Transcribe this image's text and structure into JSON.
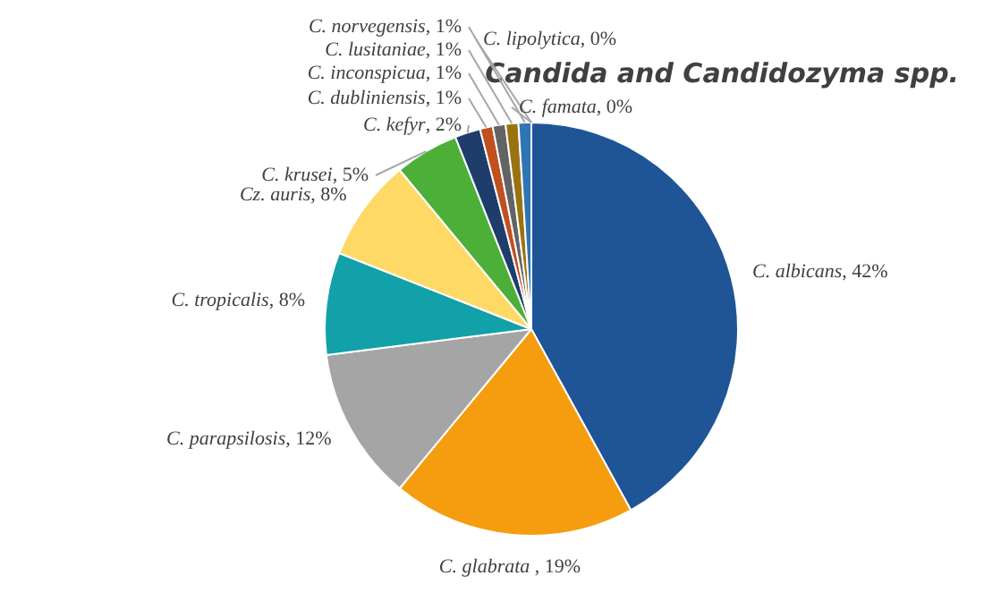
{
  "chart_data": {
    "type": "pie",
    "title": "Candida and Candidozyma spp.",
    "categories": [
      "C. albicans",
      "C. glabrata",
      "C. parapsilosis",
      "C. tropicalis",
      "Cz. auris",
      "C. krusei",
      "C. kefyr",
      "C. dubliniensis",
      "C. inconspicua",
      "C. lusitaniae",
      "C. norvegensis",
      "C. lipolytica",
      "C. famata"
    ],
    "values": [
      42,
      19,
      12,
      8,
      8,
      5,
      2,
      1,
      1,
      1,
      1,
      0,
      0
    ],
    "value_labels": [
      ", 42%",
      " , 19%",
      ", 12%",
      ", 8%",
      ", 8%",
      ", 5%",
      ", 2%",
      ", 1%",
      ", 1%",
      ", 1%",
      ", 1%",
      ", 0%",
      ", 0%"
    ],
    "colors": [
      "#1f5597",
      "#f59d0f",
      "#a5a5a5",
      "#12a1a8",
      "#ffd966",
      "#4caf38",
      "#1f3d6b",
      "#c0501f",
      "#636363",
      "#9a7310",
      "#2e75b6",
      "#2f6b3a",
      "#5b9bd5"
    ],
    "legend": false
  }
}
